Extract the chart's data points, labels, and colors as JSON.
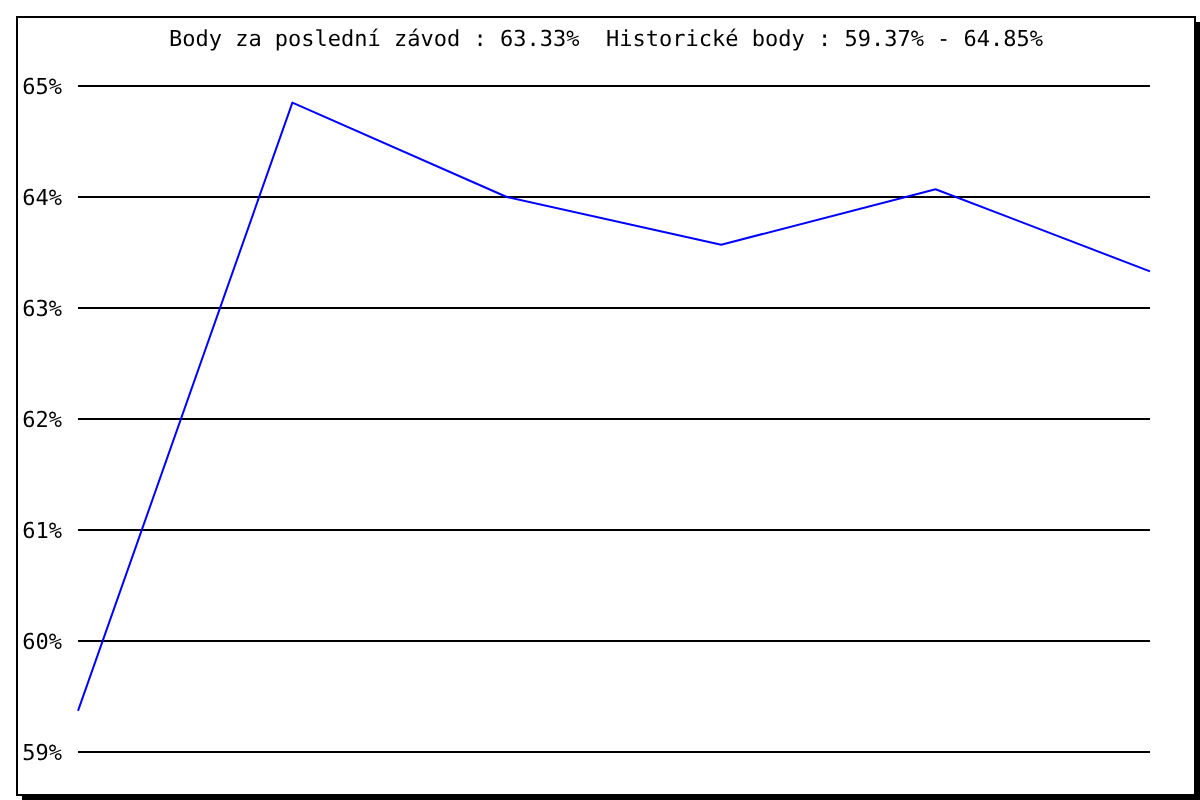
{
  "chart_data": {
    "type": "line",
    "title": "Body za poslední závod : 63.33%  Historické body : 59.37% - 64.85%",
    "categories": [
      null,
      null,
      null,
      null,
      null,
      null
    ],
    "series": [
      {
        "color": "#0000ff",
        "values": [
          59.37,
          64.85,
          64.0,
          63.57,
          64.07,
          63.33
        ]
      }
    ],
    "ylim": [
      59,
      65
    ],
    "yticks": [
      {
        "value": 59,
        "label": "59%"
      },
      {
        "value": 60,
        "label": "60%"
      },
      {
        "value": 61,
        "label": "61%"
      },
      {
        "value": 62,
        "label": "62%"
      },
      {
        "value": 63,
        "label": "63%"
      },
      {
        "value": 64,
        "label": "64%"
      },
      {
        "value": 65,
        "label": "65%"
      }
    ],
    "grid": "y",
    "tick_labels": "y",
    "marker": "none",
    "line_style": "solid"
  }
}
